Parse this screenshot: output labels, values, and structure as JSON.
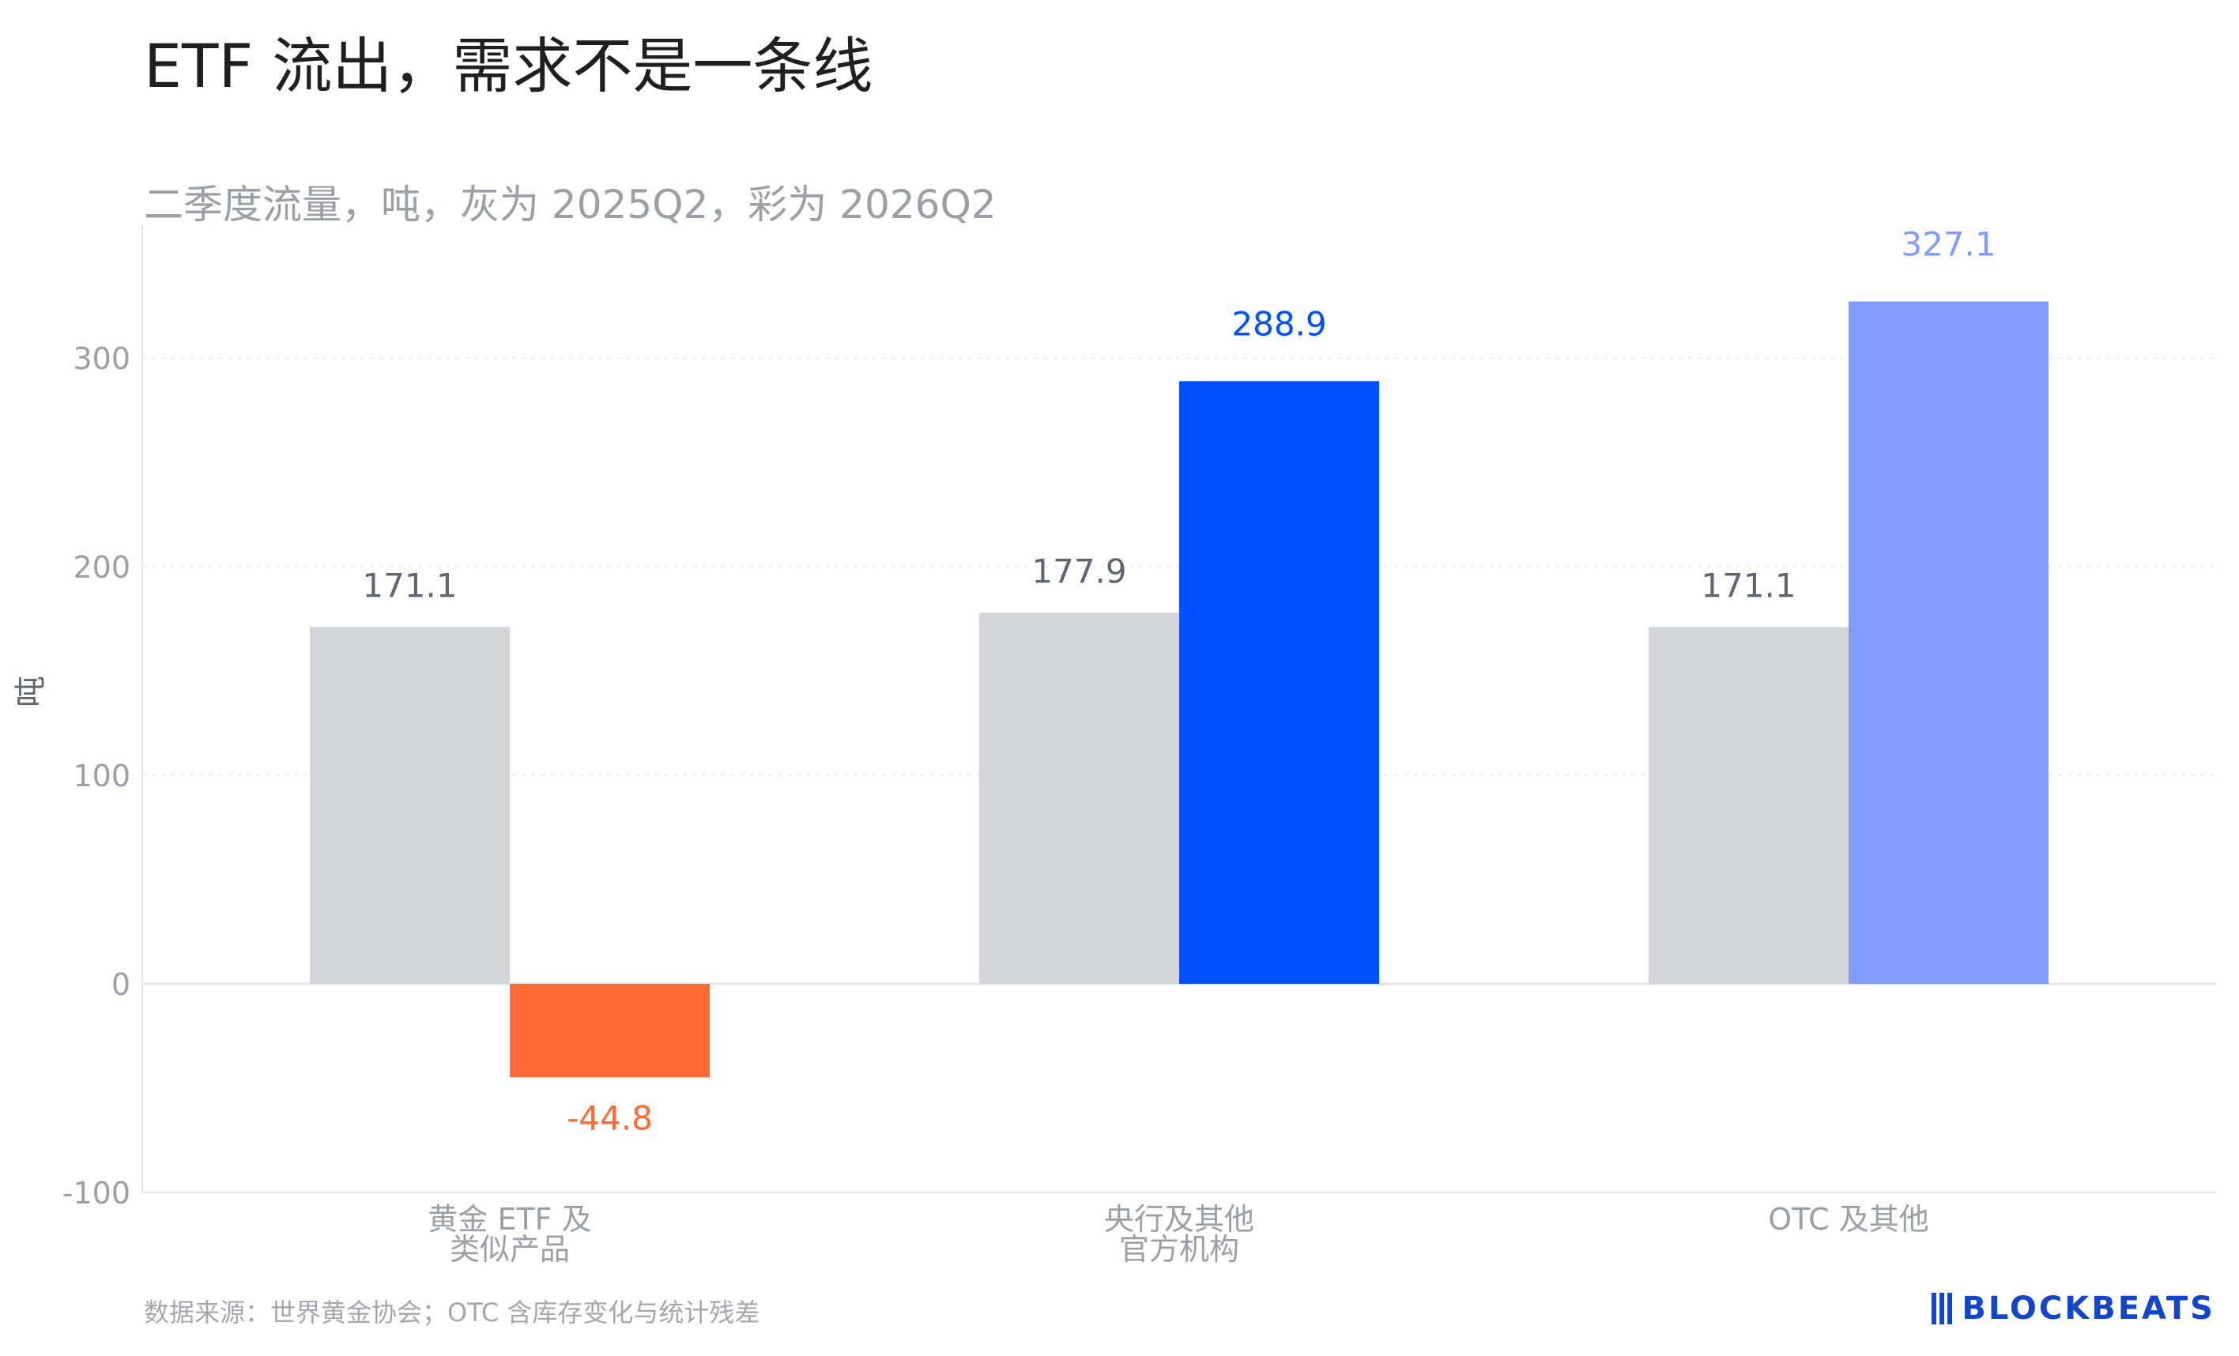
{
  "header": {
    "title": "ETF 流出，需求不是一条线"
  },
  "footer": {
    "source": "数据来源：世界黄金协会；OTC 含库存变化与统计残差",
    "brand": "BLOCKBEATS"
  },
  "chart_data": {
    "type": "bar",
    "subtitle": "二季度流量，吨，灰为 2025Q2，彩为 2026Q2",
    "ylabel": "吨",
    "ylim": [
      -100,
      350
    ],
    "yticks": [
      -100,
      0,
      100,
      200,
      300
    ],
    "grid": true,
    "categories": [
      [
        "黄金 ETF 及",
        "类似产品"
      ],
      [
        "央行及其他",
        "官方机构"
      ],
      [
        "OTC 及其他"
      ]
    ],
    "series": [
      {
        "values": [
          171.1,
          177.9,
          171.1
        ],
        "labels": [
          "171.1",
          "177.9",
          "171.1"
        ],
        "colors": [
          "#d2d5da",
          "#d2d5da",
          "#d2d5da"
        ],
        "label_color": "#5f6670"
      },
      {
        "values": [
          -44.8,
          288.9,
          327.1
        ],
        "labels": [
          "-44.8",
          "288.9",
          "327.1"
        ],
        "colors": [
          "#ff6b35",
          "#0050ff",
          "#809cff"
        ],
        "label_colors": [
          "#ff6b35",
          "#0050ff",
          "#809cff"
        ]
      }
    ],
    "colors": {
      "axis_text": "#9aa0a6",
      "grid": "#eef0f2",
      "axis_line": "#e3e5e8"
    }
  }
}
